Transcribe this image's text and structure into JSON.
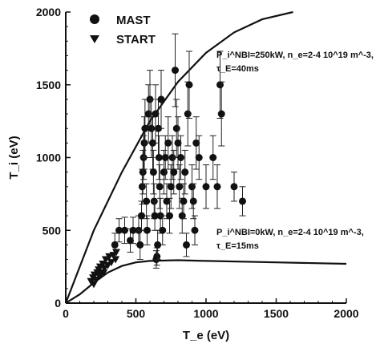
{
  "chart_data": {
    "type": "scatter",
    "xlabel": "T_e (eV)",
    "ylabel": "T_i (eV)",
    "xlim": [
      0,
      2000
    ],
    "ylim": [
      0,
      2000
    ],
    "xticks": [
      "0",
      "500",
      "1000",
      "1500",
      "2000"
    ],
    "yticks": [
      "0",
      "500",
      "1000",
      "1500",
      "2000"
    ],
    "grid": false,
    "legend_placement": "top-left",
    "series": [
      {
        "name": "MAST",
        "marker": "filled-circle",
        "points": [
          {
            "x": 350,
            "y": 400,
            "err": 80
          },
          {
            "x": 380,
            "y": 500,
            "err": 80
          },
          {
            "x": 420,
            "y": 500,
            "err": 90
          },
          {
            "x": 460,
            "y": 430,
            "err": 80
          },
          {
            "x": 480,
            "y": 500,
            "err": 90
          },
          {
            "x": 520,
            "y": 500,
            "err": 100
          },
          {
            "x": 530,
            "y": 400,
            "err": 100
          },
          {
            "x": 540,
            "y": 600,
            "err": 100
          },
          {
            "x": 545,
            "y": 800,
            "err": 120
          },
          {
            "x": 550,
            "y": 900,
            "err": 150
          },
          {
            "x": 555,
            "y": 1000,
            "err": 150
          },
          {
            "x": 560,
            "y": 1100,
            "err": 180
          },
          {
            "x": 565,
            "y": 1200,
            "err": 200
          },
          {
            "x": 575,
            "y": 700,
            "err": 120
          },
          {
            "x": 580,
            "y": 500,
            "err": 100
          },
          {
            "x": 590,
            "y": 1300,
            "err": 200
          },
          {
            "x": 600,
            "y": 1400,
            "err": 200
          },
          {
            "x": 610,
            "y": 1200,
            "err": 200
          },
          {
            "x": 620,
            "y": 1100,
            "err": 180
          },
          {
            "x": 625,
            "y": 900,
            "err": 150
          },
          {
            "x": 630,
            "y": 700,
            "err": 120
          },
          {
            "x": 635,
            "y": 600,
            "err": 100
          },
          {
            "x": 640,
            "y": 1300,
            "err": 200
          },
          {
            "x": 645,
            "y": 300,
            "err": 60
          },
          {
            "x": 650,
            "y": 320,
            "err": 60
          },
          {
            "x": 655,
            "y": 400,
            "err": 100
          },
          {
            "x": 660,
            "y": 1200,
            "err": 200
          },
          {
            "x": 665,
            "y": 1000,
            "err": 150
          },
          {
            "x": 670,
            "y": 800,
            "err": 150
          },
          {
            "x": 675,
            "y": 600,
            "err": 120
          },
          {
            "x": 680,
            "y": 1400,
            "err": 200
          },
          {
            "x": 690,
            "y": 500,
            "err": 100
          },
          {
            "x": 700,
            "y": 900,
            "err": 150
          },
          {
            "x": 710,
            "y": 1000,
            "err": 150
          },
          {
            "x": 720,
            "y": 700,
            "err": 120
          },
          {
            "x": 730,
            "y": 1100,
            "err": 180
          },
          {
            "x": 740,
            "y": 600,
            "err": 120
          },
          {
            "x": 750,
            "y": 800,
            "err": 150
          },
          {
            "x": 760,
            "y": 1000,
            "err": 150
          },
          {
            "x": 770,
            "y": 900,
            "err": 150
          },
          {
            "x": 780,
            "y": 1600,
            "err": 250
          },
          {
            "x": 790,
            "y": 1200,
            "err": 200
          },
          {
            "x": 800,
            "y": 1100,
            "err": 180
          },
          {
            "x": 810,
            "y": 800,
            "err": 150
          },
          {
            "x": 820,
            "y": 1000,
            "err": 150
          },
          {
            "x": 830,
            "y": 600,
            "err": 120
          },
          {
            "x": 840,
            "y": 700,
            "err": 120
          },
          {
            "x": 850,
            "y": 900,
            "err": 150
          },
          {
            "x": 860,
            "y": 400,
            "err": 80
          },
          {
            "x": 870,
            "y": 1300,
            "err": 220
          },
          {
            "x": 880,
            "y": 1500,
            "err": 230
          },
          {
            "x": 900,
            "y": 800,
            "err": 150
          },
          {
            "x": 910,
            "y": 700,
            "err": 120
          },
          {
            "x": 920,
            "y": 500,
            "err": 100
          },
          {
            "x": 930,
            "y": 1100,
            "err": 180
          },
          {
            "x": 950,
            "y": 1000,
            "err": 150
          },
          {
            "x": 1000,
            "y": 800,
            "err": 150
          },
          {
            "x": 1050,
            "y": 1000,
            "err": 150
          },
          {
            "x": 1080,
            "y": 800,
            "err": 150
          },
          {
            "x": 1100,
            "y": 1500,
            "err": 230
          },
          {
            "x": 1110,
            "y": 1300,
            "err": 220
          },
          {
            "x": 1200,
            "y": 800,
            "err": 100
          },
          {
            "x": 1260,
            "y": 700,
            "err": 100
          }
        ]
      },
      {
        "name": "START",
        "marker": "down-triangle",
        "points": [
          {
            "x": 180,
            "y": 150
          },
          {
            "x": 195,
            "y": 175
          },
          {
            "x": 205,
            "y": 195
          },
          {
            "x": 215,
            "y": 160
          },
          {
            "x": 225,
            "y": 210
          },
          {
            "x": 235,
            "y": 230
          },
          {
            "x": 245,
            "y": 250
          },
          {
            "x": 255,
            "y": 205
          },
          {
            "x": 265,
            "y": 270
          },
          {
            "x": 275,
            "y": 240
          },
          {
            "x": 285,
            "y": 300
          },
          {
            "x": 300,
            "y": 260
          },
          {
            "x": 310,
            "y": 320
          },
          {
            "x": 325,
            "y": 280
          },
          {
            "x": 340,
            "y": 330
          },
          {
            "x": 355,
            "y": 300
          },
          {
            "x": 360,
            "y": 350
          },
          {
            "x": 200,
            "y": 130
          },
          {
            "x": 240,
            "y": 185
          },
          {
            "x": 270,
            "y": 210
          }
        ]
      }
    ],
    "curves": [
      {
        "label_lines": [
          "P_i^NBI=250kW, n_e=2-4 10^19 m^-3,",
          "τ_E=40ms"
        ],
        "points": [
          [
            0,
            0
          ],
          [
            200,
            500
          ],
          [
            400,
            900
          ],
          [
            600,
            1250
          ],
          [
            800,
            1520
          ],
          [
            1000,
            1720
          ],
          [
            1200,
            1860
          ],
          [
            1400,
            1950
          ],
          [
            1620,
            2000
          ]
        ]
      },
      {
        "label_lines": [
          "P_i^NBI=0kW, n_e=2-4 10^19 m^-3,",
          "τ_E=15ms"
        ],
        "points": [
          [
            0,
            0
          ],
          [
            100,
            60
          ],
          [
            200,
            140
          ],
          [
            300,
            210
          ],
          [
            400,
            255
          ],
          [
            500,
            280
          ],
          [
            600,
            290
          ],
          [
            800,
            295
          ],
          [
            1000,
            290
          ],
          [
            1500,
            280
          ],
          [
            2000,
            270
          ]
        ]
      }
    ]
  }
}
